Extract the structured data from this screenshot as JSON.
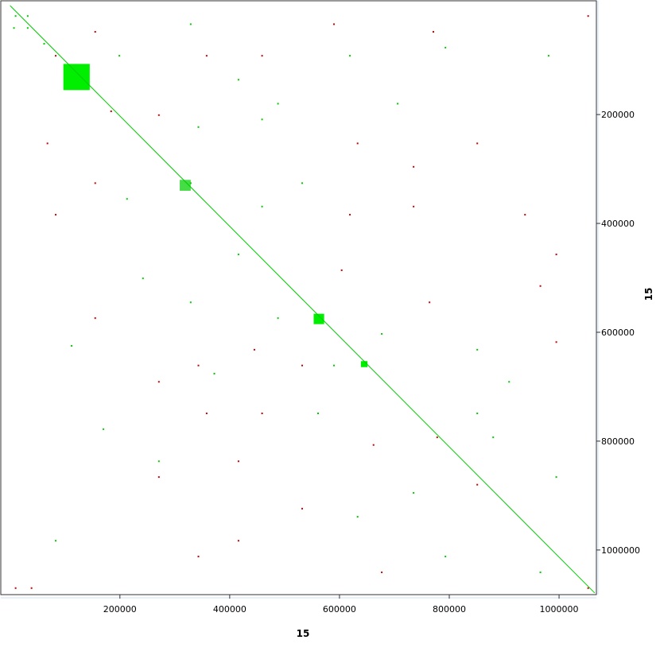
{
  "chart_data": {
    "type": "dotplot",
    "x_label": "15",
    "y_label": "15",
    "xlim": [
      -17000,
      1068000
    ],
    "ylim": [
      -9000,
      1082000
    ],
    "y_inverted": true,
    "xticks": [
      200000,
      400000,
      600000,
      800000,
      1000000
    ],
    "yticks": [
      200000,
      400000,
      600000,
      800000,
      1000000
    ],
    "diagonal": {
      "color": "#00cc00",
      "x": [
        0,
        1065000
      ],
      "y": [
        0,
        1079000
      ]
    },
    "blocks": [
      {
        "color": "#00ee00",
        "x": [
          97000,
          145000
        ],
        "y": [
          107000,
          155000
        ]
      },
      {
        "color": "#00ee00",
        "x": [
          553000,
          572000
        ],
        "y": [
          566000,
          585000
        ]
      },
      {
        "color": "#44dd44",
        "x": [
          309000,
          329000
        ],
        "y": [
          320000,
          340000
        ]
      },
      {
        "color": "#00ee00",
        "x": [
          639000,
          651000
        ],
        "y": [
          653000,
          664000
        ]
      }
    ],
    "series": [
      {
        "color": "#00cc00",
        "x": [
          10000,
          32000,
          7000,
          32000,
          62000,
          199000,
          329000,
          416000,
          488000,
          619000,
          706000,
          793000,
          981000,
          329000,
          459000,
          416000,
          242000,
          329000,
          488000,
          590000,
          677000,
          851000,
          909000,
          880000,
          995000,
          633000,
          735000,
          851000,
          561000,
          966000,
          83000,
          112000,
          170000,
          271000,
          459000,
          532000,
          343000,
          372000,
          213000,
          793000
        ],
        "y": [
          19000,
          19000,
          41000,
          41000,
          70000,
          92000,
          34000,
          136000,
          180000,
          92000,
          180000,
          77000,
          92000,
          326000,
          369000,
          457000,
          501000,
          545000,
          574000,
          661000,
          603000,
          632000,
          691000,
          793000,
          866000,
          939000,
          895000,
          749000,
          749000,
          1041000,
          983000,
          625000,
          778000,
          837000,
          209000,
          326000,
          223000,
          676000,
          355000,
          1012000
        ]
      },
      {
        "color": "#cc0000",
        "x": [
          83000,
          155000,
          184000,
          271000,
          358000,
          459000,
          590000,
          771000,
          1053000,
          68000,
          155000,
          83000,
          633000,
          735000,
          851000,
          619000,
          735000,
          938000,
          995000,
          604000,
          764000,
          966000,
          155000,
          343000,
          445000,
          271000,
          532000,
          358000,
          459000,
          271000,
          416000,
          532000,
          343000,
          416000,
          662000,
          995000,
          778000,
          10000,
          39000,
          1053000,
          851000,
          677000
        ],
        "y": [
          92000,
          48000,
          194000,
          201000,
          92000,
          92000,
          34000,
          48000,
          19000,
          253000,
          326000,
          384000,
          253000,
          296000,
          253000,
          384000,
          369000,
          384000,
          457000,
          486000,
          545000,
          515000,
          574000,
          661000,
          632000,
          691000,
          661000,
          749000,
          749000,
          866000,
          837000,
          924000,
          1012000,
          983000,
          807000,
          618000,
          793000,
          1070000,
          1070000,
          1070000,
          880000,
          1041000
        ]
      }
    ]
  }
}
